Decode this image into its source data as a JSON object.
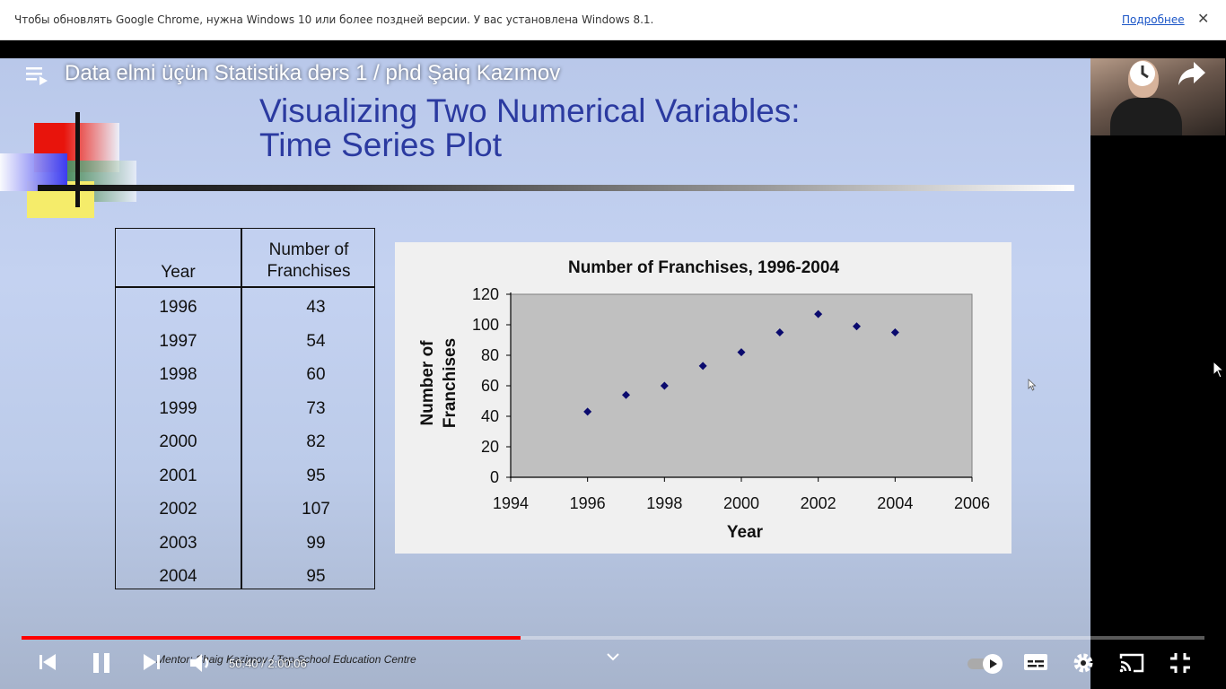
{
  "infobar": {
    "message": "Чтобы обновлять Google Chrome, нужна Windows 10 или более поздней версии. У вас установлена Windows 8.1.",
    "link": "Подробнее",
    "close": "✕"
  },
  "video": {
    "title": "Data elmi üçün Statistika dərs 1 / phd Şaiq Kazımov",
    "time_display": "50:40 / 2:00:06",
    "progress": 0.4216
  },
  "slide": {
    "title_line1": "Visualizing Two Numerical Variables:",
    "title_line2": "Time Series Plot",
    "footer": "Mentor: Shaig Kazimov / Top School Education Centre"
  },
  "table": {
    "header_year": "Year",
    "header_count_line1": "Number of",
    "header_count_line2": "Franchises",
    "rows": [
      {
        "year": "1996",
        "value": "43"
      },
      {
        "year": "1997",
        "value": "54"
      },
      {
        "year": "1998",
        "value": "60"
      },
      {
        "year": "1999",
        "value": "73"
      },
      {
        "year": "2000",
        "value": "82"
      },
      {
        "year": "2001",
        "value": "95"
      },
      {
        "year": "2002",
        "value": "107"
      },
      {
        "year": "2003",
        "value": "99"
      },
      {
        "year": "2004",
        "value": "95"
      }
    ]
  },
  "chart_data": {
    "type": "scatter",
    "title": "Number of Franchises, 1996-2004",
    "xlabel": "Year",
    "ylabel_line1": "Number of",
    "ylabel_line2": "Franchises",
    "x": [
      1996,
      1997,
      1998,
      1999,
      2000,
      2001,
      2002,
      2003,
      2004
    ],
    "y": [
      43,
      54,
      60,
      73,
      82,
      95,
      107,
      99,
      95
    ],
    "xlim": [
      1994,
      2006
    ],
    "ylim": [
      0,
      120
    ],
    "xticks": [
      "1994",
      "1996",
      "1998",
      "2000",
      "2002",
      "2004",
      "2006"
    ],
    "yticks": [
      "0",
      "20",
      "40",
      "60",
      "80",
      "100",
      "120"
    ],
    "grid": false,
    "marker_color": "#0a0a6e",
    "plot_background": "#c0c0c0"
  }
}
